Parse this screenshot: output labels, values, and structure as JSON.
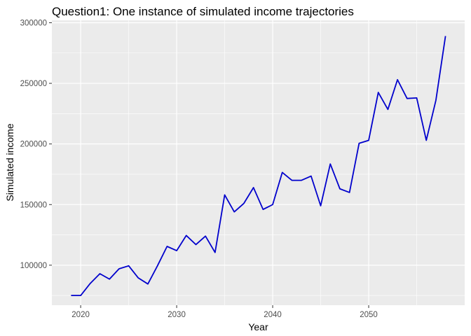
{
  "chart_data": {
    "type": "line",
    "title": "Question1: One instance of simulated income trajectories",
    "xlabel": "Year",
    "ylabel": "Simulated income",
    "xlim": [
      2017.0,
      2060.0
    ],
    "ylim": [
      67000,
      302000
    ],
    "x_ticks": [
      2020,
      2030,
      2040,
      2050
    ],
    "x_tick_labels": [
      "2020",
      "2030",
      "2040",
      "2050"
    ],
    "y_ticks": [
      100000,
      150000,
      200000,
      250000,
      300000
    ],
    "y_tick_labels": [
      "100000",
      "150000",
      "200000",
      "250000",
      "300000"
    ],
    "grid": true,
    "legend": "none",
    "colors": {
      "line": "#0000cc",
      "panel": "#ebebeb",
      "grid": "#ffffff"
    },
    "series": [
      {
        "x": [
          2019,
          2020,
          2021,
          2022,
          2023,
          2024,
          2025,
          2026,
          2027,
          2028,
          2029,
          2030,
          2031,
          2032,
          2033,
          2034,
          2035,
          2036,
          2037,
          2038,
          2039,
          2040,
          2041,
          2042,
          2043,
          2044,
          2045,
          2046,
          2047,
          2048,
          2049,
          2050,
          2051,
          2052,
          2053,
          2054,
          2055,
          2056,
          2057,
          2058
        ],
        "values": [
          75000,
          75000,
          85000,
          93000,
          88500,
          97000,
          99500,
          89500,
          84500,
          99500,
          115500,
          112000,
          124500,
          117000,
          124000,
          110500,
          158000,
          144000,
          151000,
          164000,
          146000,
          150000,
          176500,
          170000,
          170000,
          173500,
          149000,
          183500,
          163000,
          160000,
          200500,
          203000,
          242500,
          228500,
          253000,
          237500,
          238000,
          203000,
          236000,
          289000
        ]
      }
    ]
  }
}
